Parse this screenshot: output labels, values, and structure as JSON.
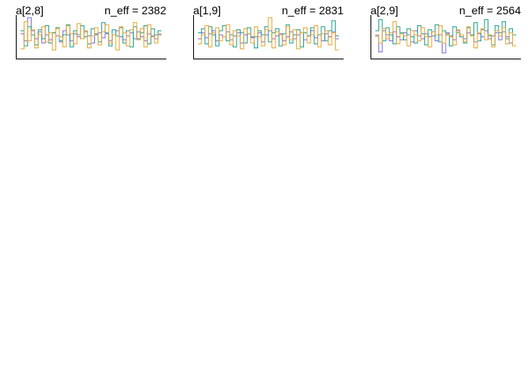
{
  "chart_data": [
    {
      "type": "line",
      "title": "a[2,8]",
      "annotation": "n_eff = 2382",
      "ylim": [
        -1,
        1
      ],
      "series": [
        {
          "color": "#7b6bdc",
          "values": [
            0.15,
            -0.2,
            0.95,
            0.3,
            -0.1,
            0.25,
            -0.3,
            0.1,
            -0.15,
            0.2,
            0.05,
            -0.25,
            0.3,
            0.1,
            -0.2,
            0.15,
            0.0,
            -0.1,
            0.25,
            0.05,
            -0.3,
            0.1,
            0.2,
            -0.05,
            0.15,
            -0.2,
            0.1,
            0.3,
            0.0,
            -0.15,
            0.05,
            0.2,
            -0.1,
            0.25,
            0.0,
            -0.2,
            0.15,
            0.05,
            -0.1,
            0.1
          ]
        },
        {
          "color": "#1a9e8e",
          "values": [
            0.3,
            -0.45,
            0.5,
            0.1,
            -0.4,
            0.35,
            -0.1,
            0.55,
            -0.3,
            0.2,
            0.45,
            -0.2,
            0.1,
            0.6,
            -0.5,
            0.3,
            0.1,
            0.55,
            0.0,
            -0.35,
            0.4,
            0.15,
            -0.25,
            0.7,
            0.2,
            -0.45,
            0.35,
            0.05,
            0.45,
            -0.3,
            0.3,
            -0.5,
            0.5,
            -0.1,
            0.2,
            0.55,
            -0.35,
            0.4,
            0.1,
            0.3
          ]
        },
        {
          "color": "#e6a532",
          "values": [
            -0.6,
            0.75,
            -0.2,
            0.35,
            -0.55,
            0.1,
            0.5,
            -0.25,
            0.2,
            -0.65,
            0.4,
            0.0,
            -0.5,
            0.55,
            0.15,
            -0.35,
            0.65,
            -0.1,
            0.3,
            -0.55,
            0.05,
            0.45,
            -0.4,
            0.25,
            0.6,
            -0.3,
            0.1,
            -0.65,
            0.5,
            0.2,
            -0.45,
            0.35,
            0.7,
            -0.15,
            0.4,
            -0.5,
            0.6,
            0.0,
            -0.3,
            0.15
          ]
        }
      ]
    },
    {
      "type": "line",
      "title": "a[1,9]",
      "annotation": "n_eff = 2831",
      "ylim": [
        -1,
        1
      ],
      "series": [
        {
          "color": "#7b6bdc",
          "values": [
            -0.1,
            0.2,
            -0.05,
            0.15,
            0.3,
            -0.2,
            0.1,
            0.0,
            0.25,
            -0.15,
            0.05,
            0.2,
            -0.3,
            0.1,
            0.15,
            -0.05,
            0.0,
            0.2,
            -0.25,
            0.1,
            0.3,
            -0.1,
            0.05,
            0.15,
            -0.2,
            0.0,
            0.25,
            -0.1,
            0.1,
            0.2,
            -0.15,
            0.05,
            0.3,
            -0.05,
            0.1,
            -0.2,
            0.15,
            0.0,
            0.25,
            -0.1
          ]
        },
        {
          "color": "#1a9e8e",
          "values": [
            0.2,
            0.4,
            -0.35,
            0.5,
            0.1,
            -0.45,
            0.3,
            0.55,
            -0.2,
            0.1,
            -0.5,
            0.35,
            0.2,
            -0.3,
            0.45,
            0.0,
            -0.55,
            0.3,
            0.1,
            0.5,
            -0.25,
            0.2,
            0.4,
            -0.45,
            0.15,
            0.6,
            -0.3,
            0.1,
            0.35,
            -0.5,
            0.2,
            0.05,
            0.45,
            -0.35,
            0.1,
            0.5,
            -0.2,
            0.3,
            0.8,
            0.05
          ]
        },
        {
          "color": "#e6a532",
          "values": [
            -0.35,
            0.1,
            0.55,
            -0.5,
            0.2,
            0.45,
            -0.2,
            0.0,
            0.6,
            -0.4,
            0.3,
            0.05,
            -0.6,
            0.4,
            0.15,
            -0.3,
            0.5,
            0.0,
            -0.45,
            0.35,
            0.95,
            -0.55,
            0.25,
            0.1,
            -0.4,
            0.5,
            -0.15,
            0.35,
            -0.6,
            0.2,
            0.45,
            -0.3,
            0.1,
            0.55,
            -0.5,
            0.15,
            0.3,
            -0.4,
            0.2,
            -0.65
          ]
        }
      ]
    },
    {
      "type": "line",
      "title": "a[2,9]",
      "annotation": "n_eff = 2564",
      "ylim": [
        -1,
        1
      ],
      "series": [
        {
          "color": "#7b6bdc",
          "values": [
            0.05,
            -0.75,
            0.3,
            0.1,
            -0.2,
            0.25,
            0.0,
            -0.15,
            0.2,
            0.1,
            -0.25,
            0.3,
            0.05,
            -0.1,
            0.15,
            0.0,
            0.25,
            -0.2,
            0.1,
            -0.8,
            0.2,
            0.05,
            -0.15,
            0.3,
            0.0,
            -0.1,
            0.2,
            0.1,
            -0.25,
            0.15,
            0.0,
            0.3,
            -0.1,
            0.05,
            0.2,
            -0.15,
            0.25,
            0.0,
            -0.3,
            0.1
          ]
        },
        {
          "color": "#1a9e8e",
          "values": [
            0.3,
            0.85,
            -0.2,
            0.45,
            0.1,
            -0.35,
            0.5,
            0.2,
            -0.15,
            0.4,
            0.0,
            -0.3,
            0.55,
            0.15,
            -0.4,
            0.35,
            0.05,
            0.6,
            -0.25,
            0.3,
            0.1,
            -0.45,
            0.5,
            0.2,
            0.0,
            -0.3,
            0.45,
            0.1,
            0.7,
            -0.2,
            0.35,
            0.85,
            0.05,
            -0.4,
            0.55,
            0.2,
            0.75,
            -0.1,
            0.4,
            0.1
          ]
        },
        {
          "color": "#e6a532",
          "values": [
            0.1,
            -0.3,
            0.4,
            -0.1,
            0.2,
            0.75,
            -0.35,
            0.15,
            0.05,
            -0.45,
            0.3,
            0.1,
            -0.2,
            0.45,
            0.0,
            -0.5,
            0.25,
            0.1,
            0.55,
            -0.3,
            0.15,
            0.0,
            -0.4,
            0.35,
            0.1,
            -0.25,
            0.5,
            0.05,
            -0.55,
            0.2,
            0.4,
            -0.15,
            0.1,
            -0.5,
            0.3,
            0.05,
            0.45,
            -0.35,
            0.2,
            -0.45
          ]
        }
      ]
    }
  ]
}
